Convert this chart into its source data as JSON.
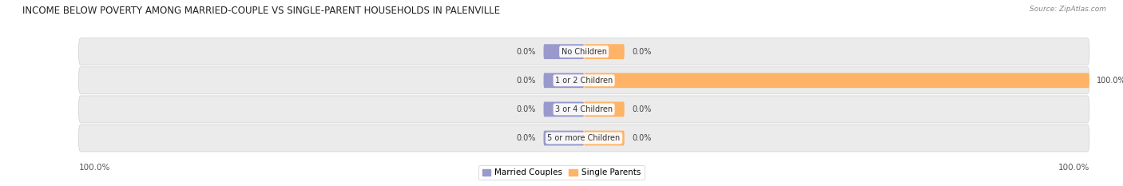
{
  "title": "INCOME BELOW POVERTY AMONG MARRIED-COUPLE VS SINGLE-PARENT HOUSEHOLDS IN PALENVILLE",
  "source": "Source: ZipAtlas.com",
  "categories": [
    "No Children",
    "1 or 2 Children",
    "3 or 4 Children",
    "5 or more Children"
  ],
  "married_values": [
    0.0,
    0.0,
    0.0,
    0.0
  ],
  "single_values": [
    0.0,
    100.0,
    0.0,
    0.0
  ],
  "married_color": "#9999cc",
  "single_color": "#ffb366",
  "row_bg_color": "#ebebeb",
  "row_border_color": "#d0d0d0",
  "fig_bg_color": "#ffffff",
  "center_label_bg": "#ffffff",
  "title_fontsize": 8.5,
  "source_fontsize": 6.5,
  "label_fontsize": 7.0,
  "category_fontsize": 7.0,
  "legend_fontsize": 7.5,
  "axis_label_fontsize": 7.5,
  "stub_size": 8.0,
  "max_val": 100.0,
  "bottom_left_label": "100.0%",
  "bottom_right_label": "100.0%"
}
